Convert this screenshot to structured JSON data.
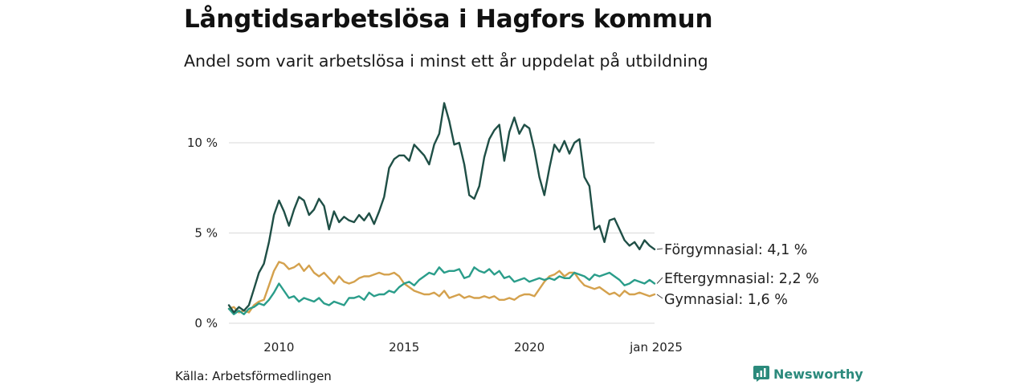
{
  "title": "Långtidsarbetslösa i Hagfors kommun",
  "subtitle": "Andel som varit arbetslösa i minst ett år uppdelat på utbildning",
  "source": "Källa: Arbetsförmedlingen",
  "brand": "Newsworthy",
  "chart_data": {
    "type": "line",
    "title": "Långtidsarbetslösa i Hagfors kommun",
    "xlabel": "",
    "ylabel": "",
    "xlim": [
      2008.0,
      2025.0
    ],
    "ylim": [
      0,
      12.5
    ],
    "grid": true,
    "yticks": [
      {
        "value": 0,
        "label": "0 %"
      },
      {
        "value": 5,
        "label": "5 %"
      },
      {
        "value": 10,
        "label": "10 %"
      }
    ],
    "xticks": [
      {
        "value": 2010,
        "label": "2010"
      },
      {
        "value": 2015,
        "label": "2015"
      },
      {
        "value": 2020,
        "label": "2020"
      },
      {
        "value": 2025,
        "label": "jan 2025"
      }
    ],
    "series": [
      {
        "name": "Förgymnasial",
        "end_label": "Förgymnasial: 4,1 %",
        "color": "#1f4f46",
        "x": [
          2008.0,
          2008.2,
          2008.4,
          2008.6,
          2008.8,
          2009.0,
          2009.2,
          2009.4,
          2009.6,
          2009.8,
          2010.0,
          2010.2,
          2010.4,
          2010.6,
          2010.8,
          2011.0,
          2011.2,
          2011.4,
          2011.6,
          2011.8,
          2012.0,
          2012.2,
          2012.4,
          2012.6,
          2012.8,
          2013.0,
          2013.2,
          2013.4,
          2013.6,
          2013.8,
          2014.0,
          2014.2,
          2014.4,
          2014.6,
          2014.8,
          2015.0,
          2015.2,
          2015.4,
          2015.6,
          2015.8,
          2016.0,
          2016.2,
          2016.4,
          2016.6,
          2016.8,
          2017.0,
          2017.2,
          2017.4,
          2017.6,
          2017.8,
          2018.0,
          2018.2,
          2018.4,
          2018.6,
          2018.8,
          2019.0,
          2019.2,
          2019.4,
          2019.6,
          2019.8,
          2020.0,
          2020.2,
          2020.4,
          2020.6,
          2020.8,
          2021.0,
          2021.2,
          2021.4,
          2021.6,
          2021.8,
          2022.0,
          2022.2,
          2022.4,
          2022.6,
          2022.8,
          2023.0,
          2023.2,
          2023.4,
          2023.6,
          2023.8,
          2024.0,
          2024.2,
          2024.4,
          2024.6,
          2024.8,
          2025.0
        ],
        "y": [
          1.0,
          0.6,
          0.9,
          0.7,
          1.0,
          1.9,
          2.8,
          3.3,
          4.5,
          6.0,
          6.8,
          6.2,
          5.4,
          6.3,
          7.0,
          6.8,
          6.0,
          6.3,
          6.9,
          6.5,
          5.2,
          6.2,
          5.6,
          5.9,
          5.7,
          5.6,
          6.0,
          5.7,
          6.1,
          5.5,
          6.2,
          7.0,
          8.6,
          9.1,
          9.3,
          9.3,
          9.0,
          9.9,
          9.6,
          9.3,
          8.8,
          9.9,
          10.5,
          12.2,
          11.2,
          9.9,
          10.0,
          8.8,
          7.1,
          6.9,
          7.6,
          9.2,
          10.2,
          10.7,
          11.0,
          9.0,
          10.6,
          11.4,
          10.5,
          11.0,
          10.8,
          9.6,
          8.1,
          7.1,
          8.6,
          9.9,
          9.5,
          10.1,
          9.4,
          10.0,
          10.2,
          8.1,
          7.6,
          5.2,
          5.4,
          4.5,
          5.7,
          5.8,
          5.2,
          4.6,
          4.3,
          4.5,
          4.1,
          4.6,
          4.3,
          4.1
        ]
      },
      {
        "name": "Eftergymnasial",
        "end_label": "Eftergymnasial: 2,2 %",
        "color": "#2a9d8a",
        "x": [
          2008.0,
          2008.2,
          2008.4,
          2008.6,
          2008.8,
          2009.0,
          2009.2,
          2009.4,
          2009.6,
          2009.8,
          2010.0,
          2010.2,
          2010.4,
          2010.6,
          2010.8,
          2011.0,
          2011.2,
          2011.4,
          2011.6,
          2011.8,
          2012.0,
          2012.2,
          2012.4,
          2012.6,
          2012.8,
          2013.0,
          2013.2,
          2013.4,
          2013.6,
          2013.8,
          2014.0,
          2014.2,
          2014.4,
          2014.6,
          2014.8,
          2015.0,
          2015.2,
          2015.4,
          2015.6,
          2015.8,
          2016.0,
          2016.2,
          2016.4,
          2016.6,
          2016.8,
          2017.0,
          2017.2,
          2017.4,
          2017.6,
          2017.8,
          2018.0,
          2018.2,
          2018.4,
          2018.6,
          2018.8,
          2019.0,
          2019.2,
          2019.4,
          2019.6,
          2019.8,
          2020.0,
          2020.2,
          2020.4,
          2020.6,
          2020.8,
          2021.0,
          2021.2,
          2021.4,
          2021.6,
          2021.8,
          2022.0,
          2022.2,
          2022.4,
          2022.6,
          2022.8,
          2023.0,
          2023.2,
          2023.4,
          2023.6,
          2023.8,
          2024.0,
          2024.2,
          2024.4,
          2024.6,
          2024.8,
          2025.0
        ],
        "y": [
          0.8,
          0.5,
          0.7,
          0.5,
          0.8,
          0.9,
          1.1,
          1.0,
          1.3,
          1.7,
          2.2,
          1.8,
          1.4,
          1.5,
          1.2,
          1.4,
          1.3,
          1.2,
          1.4,
          1.1,
          1.0,
          1.2,
          1.1,
          1.0,
          1.4,
          1.4,
          1.5,
          1.3,
          1.7,
          1.5,
          1.6,
          1.6,
          1.8,
          1.7,
          2.0,
          2.2,
          2.3,
          2.1,
          2.4,
          2.6,
          2.8,
          2.7,
          3.1,
          2.8,
          2.9,
          2.9,
          3.0,
          2.5,
          2.6,
          3.1,
          2.9,
          2.8,
          3.0,
          2.7,
          2.9,
          2.5,
          2.6,
          2.3,
          2.4,
          2.5,
          2.3,
          2.4,
          2.5,
          2.4,
          2.5,
          2.4,
          2.6,
          2.5,
          2.5,
          2.8,
          2.7,
          2.6,
          2.4,
          2.7,
          2.6,
          2.7,
          2.8,
          2.6,
          2.4,
          2.1,
          2.2,
          2.4,
          2.3,
          2.2,
          2.4,
          2.2
        ]
      },
      {
        "name": "Gymnasial",
        "end_label": "Gymnasial: 1,6 %",
        "color": "#d4a14d",
        "x": [
          2008.0,
          2008.2,
          2008.4,
          2008.6,
          2008.8,
          2009.0,
          2009.2,
          2009.4,
          2009.6,
          2009.8,
          2010.0,
          2010.2,
          2010.4,
          2010.6,
          2010.8,
          2011.0,
          2011.2,
          2011.4,
          2011.6,
          2011.8,
          2012.0,
          2012.2,
          2012.4,
          2012.6,
          2012.8,
          2013.0,
          2013.2,
          2013.4,
          2013.6,
          2013.8,
          2014.0,
          2014.2,
          2014.4,
          2014.6,
          2014.8,
          2015.0,
          2015.2,
          2015.4,
          2015.6,
          2015.8,
          2016.0,
          2016.2,
          2016.4,
          2016.6,
          2016.8,
          2017.0,
          2017.2,
          2017.4,
          2017.6,
          2017.8,
          2018.0,
          2018.2,
          2018.4,
          2018.6,
          2018.8,
          2019.0,
          2019.2,
          2019.4,
          2019.6,
          2019.8,
          2020.0,
          2020.2,
          2020.4,
          2020.6,
          2020.8,
          2021.0,
          2021.2,
          2021.4,
          2021.6,
          2021.8,
          2022.0,
          2022.2,
          2022.4,
          2022.6,
          2022.8,
          2023.0,
          2023.2,
          2023.4,
          2023.6,
          2023.8,
          2024.0,
          2024.2,
          2024.4,
          2024.6,
          2024.8,
          2025.0
        ],
        "y": [
          0.8,
          0.9,
          0.6,
          0.7,
          0.6,
          1.0,
          1.2,
          1.3,
          2.1,
          2.9,
          3.4,
          3.3,
          3.0,
          3.1,
          3.3,
          2.9,
          3.2,
          2.8,
          2.6,
          2.8,
          2.5,
          2.2,
          2.6,
          2.3,
          2.2,
          2.3,
          2.5,
          2.6,
          2.6,
          2.7,
          2.8,
          2.7,
          2.7,
          2.8,
          2.6,
          2.2,
          2.0,
          1.8,
          1.7,
          1.6,
          1.6,
          1.7,
          1.5,
          1.8,
          1.4,
          1.5,
          1.6,
          1.4,
          1.5,
          1.4,
          1.4,
          1.5,
          1.4,
          1.5,
          1.3,
          1.3,
          1.4,
          1.3,
          1.5,
          1.6,
          1.6,
          1.5,
          1.9,
          2.3,
          2.6,
          2.7,
          2.9,
          2.6,
          2.8,
          2.8,
          2.4,
          2.1,
          2.0,
          1.9,
          2.0,
          1.8,
          1.6,
          1.7,
          1.5,
          1.8,
          1.6,
          1.6,
          1.7,
          1.6,
          1.5,
          1.6
        ]
      }
    ]
  }
}
